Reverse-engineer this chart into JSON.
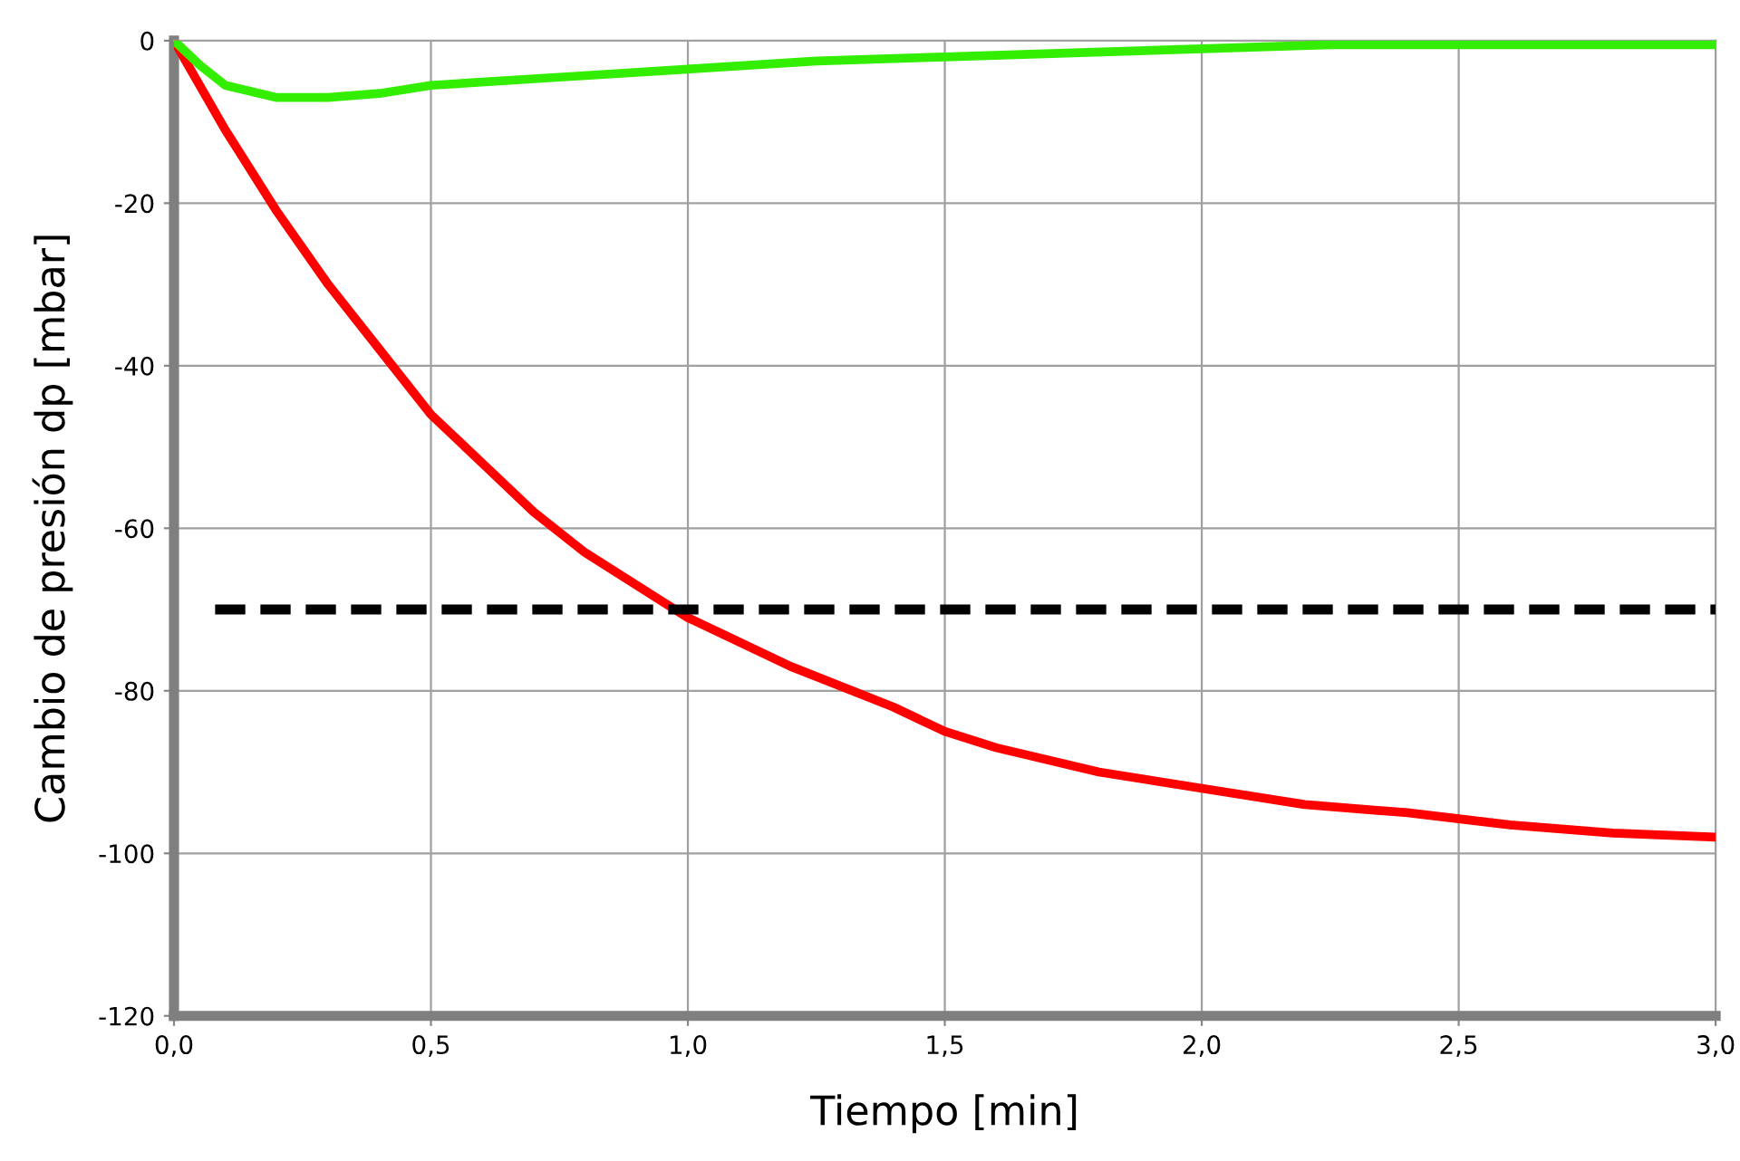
{
  "chart_data": {
    "type": "line",
    "xlabel": "Tiempo [min]",
    "ylabel": "Cambio de presión dp [mbar]",
    "xlim": [
      0,
      3
    ],
    "ylim": [
      -120,
      0
    ],
    "xticks": [
      {
        "value": 0,
        "label": "0,0"
      },
      {
        "value": 0.5,
        "label": "0,5"
      },
      {
        "value": 1,
        "label": "1,0"
      },
      {
        "value": 1.5,
        "label": "1,5"
      },
      {
        "value": 2,
        "label": "2,0"
      },
      {
        "value": 2.5,
        "label": "2,5"
      },
      {
        "value": 3,
        "label": "3,0"
      }
    ],
    "yticks": [
      -120,
      -100,
      -80,
      -60,
      -40,
      -20,
      0
    ],
    "grid": true,
    "marker": "none",
    "series": [
      {
        "color": "#ff0000",
        "line_style": "solid",
        "x": [
          0,
          0.1,
          0.2,
          0.3,
          0.4,
          0.5,
          0.6,
          0.7,
          0.8,
          0.9,
          1.0,
          1.2,
          1.4,
          1.5,
          1.6,
          1.8,
          2.0,
          2.2,
          2.4,
          2.6,
          2.8,
          3.0
        ],
        "values": [
          0,
          -11,
          -21,
          -30,
          -38,
          -46,
          -52,
          -58,
          -63,
          -67,
          -71,
          -77,
          -82,
          -85,
          -87,
          -90,
          -92,
          -94,
          -95,
          -96.5,
          -97.5,
          -98
        ]
      },
      {
        "color": "#33ee00",
        "line_style": "solid",
        "x": [
          0,
          0.05,
          0.1,
          0.2,
          0.3,
          0.4,
          0.5,
          0.75,
          1.0,
          1.25,
          1.5,
          1.75,
          2.0,
          2.25,
          2.5,
          3.0
        ],
        "values": [
          0,
          -3,
          -5.5,
          -7,
          -7,
          -6.5,
          -5.5,
          -4.5,
          -3.5,
          -2.5,
          -2,
          -1.5,
          -1,
          -0.5,
          -0.5,
          -0.5
        ]
      },
      {
        "color": "#000000",
        "line_style": "dashed",
        "x": [
          0.08,
          3.0
        ],
        "values": [
          -70,
          -70
        ]
      }
    ]
  }
}
